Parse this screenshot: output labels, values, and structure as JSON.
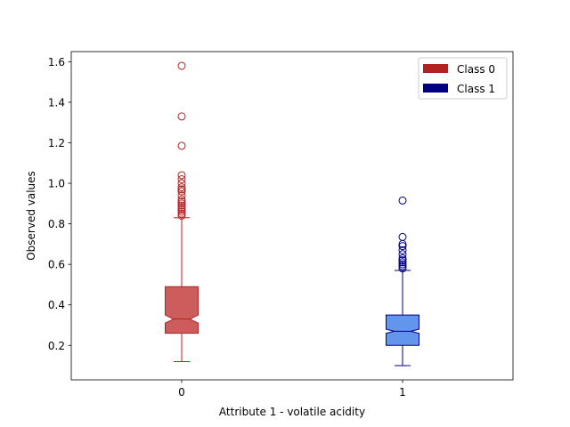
{
  "chart_data": {
    "type": "boxplot",
    "title": "",
    "xlabel": "Attribute 1 - volatile acidity",
    "ylabel": "Observed values",
    "ylim": [
      0.03,
      1.65
    ],
    "yticks": [
      0.2,
      0.4,
      0.6,
      0.8,
      1.0,
      1.2,
      1.4,
      1.6
    ],
    "ytick_labels": [
      "0.2",
      "0.4",
      "0.6",
      "0.8",
      "1.0",
      "1.2",
      "1.4",
      "1.6"
    ],
    "categories": [
      "0",
      "1"
    ],
    "xlim": [
      -0.5,
      1.5
    ],
    "notched": true,
    "legend": {
      "position": "upper-right",
      "entries": [
        {
          "label": "Class 0",
          "color": "#b22222"
        },
        {
          "label": "Class 1",
          "color": "#000080"
        }
      ]
    },
    "series": [
      {
        "name": "Class 0",
        "position": 0,
        "edge_color": "#b22222",
        "fill_color": "#cd5c5c",
        "whisker_low": 0.12,
        "q1": 0.26,
        "median": 0.33,
        "q3": 0.49,
        "notch_low": 0.31,
        "notch_high": 0.35,
        "whisker_high": 0.83,
        "outliers": [
          0.84,
          0.85,
          0.86,
          0.87,
          0.88,
          0.89,
          0.9,
          0.91,
          0.92,
          0.94,
          0.96,
          0.97,
          0.98,
          1.0,
          1.02,
          1.04,
          1.185,
          1.33,
          1.58
        ]
      },
      {
        "name": "Class 1",
        "position": 1,
        "edge_color": "#000080",
        "fill_color": "#6495ed",
        "whisker_low": 0.1,
        "q1": 0.2,
        "median": 0.27,
        "q3": 0.35,
        "notch_low": 0.26,
        "notch_high": 0.28,
        "whisker_high": 0.57,
        "outliers": [
          0.58,
          0.59,
          0.6,
          0.61,
          0.62,
          0.63,
          0.65,
          0.67,
          0.69,
          0.7,
          0.735,
          0.915
        ]
      }
    ]
  }
}
